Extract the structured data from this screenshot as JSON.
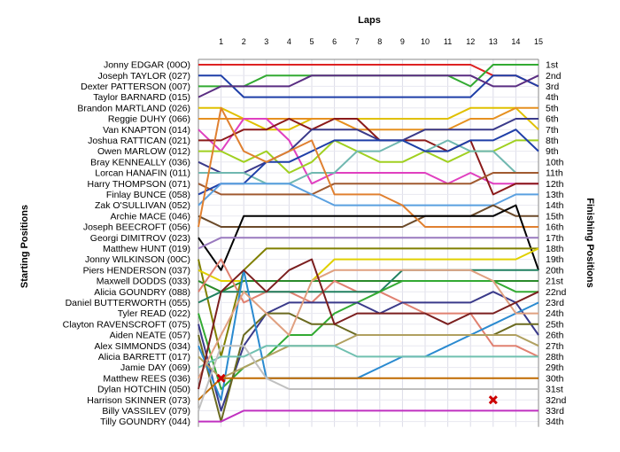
{
  "chart_data": {
    "type": "line",
    "title": "Laps",
    "xlabel": "Laps",
    "ylabel_left": "Starting Positions",
    "ylabel_right": "Finishing Positions",
    "x": [
      0,
      1,
      2,
      3,
      4,
      5,
      6,
      7,
      8,
      9,
      10,
      11,
      12,
      13,
      14,
      15
    ],
    "x_ticks": [
      "1",
      "2",
      "3",
      "4",
      "5",
      "6",
      "7",
      "8",
      "9",
      "10",
      "11",
      "12",
      "13",
      "14",
      "15"
    ],
    "ylim": [
      1,
      34
    ],
    "grid": true,
    "starting_labels": [
      "Jonny EDGAR (00O)",
      "Joseph TAYLOR (027)",
      "Dexter PATTERSON (007)",
      "Taylor BARNARD (015)",
      "Brandon MARTLAND (026)",
      "Reggie DUHY (066)",
      "Van KNAPTON (014)",
      "Joshua RATTICAN (021)",
      "Owen MARLOW (012)",
      "Bray KENNEALLY (036)",
      "Lorcan HANAFIN (011)",
      "Harry THOMPSON (071)",
      "Finlay BUNCE (058)",
      "Zak O'SULLIVAN (052)",
      "Archie MACE (046)",
      "Joseph BEECROFT (056)",
      "Georgi DIMITROV (023)",
      "Matthew HUNT (019)",
      "Jonny WILKINSON (00C)",
      "Piers HENDERSON (037)",
      "Maxwell DODDS (033)",
      "Alicia GOUNDRY (088)",
      "Daniel BUTTERWORTH (055)",
      "Tyler READ (022)",
      "Clayton RAVENSCROFT (075)",
      "Aiden NEATE (057)",
      "Alex SIMMONDS (034)",
      "Alicia BARRETT (017)",
      "Jamie DAY (069)",
      "Matthew REES (036)",
      "Dylan HOTCHIN (050)",
      "Harrison SKINNER (073)",
      "Billy VASSILEV (079)",
      "Tilly GOUNDRY (044)"
    ],
    "finishing_labels": [
      "1st",
      "2nd",
      "3rd",
      "4th",
      "5th",
      "6th",
      "7th",
      "8th",
      "9th",
      "10th",
      "11th",
      "12th",
      "13th",
      "14th",
      "15th",
      "16th",
      "17th",
      "18th",
      "19th",
      "20th",
      "21st",
      "22nd",
      "23rd",
      "24th",
      "25th",
      "26th",
      "27th",
      "28th",
      "29th",
      "30th",
      "31st",
      "32nd",
      "33rd",
      "34th"
    ],
    "series": [
      {
        "color": "#dd2222",
        "positions": [
          1,
          1,
          1,
          1,
          1,
          1,
          1,
          1,
          1,
          1,
          1,
          1,
          1,
          2,
          2,
          3
        ]
      },
      {
        "color": "#1f3fa8",
        "positions": [
          2,
          2,
          4,
          4,
          4,
          4,
          4,
          4,
          4,
          4,
          4,
          4,
          4,
          2,
          2,
          3
        ]
      },
      {
        "color": "#33aa33",
        "positions": [
          3,
          3,
          3,
          2,
          2,
          2,
          2,
          2,
          2,
          2,
          2,
          2,
          3,
          1,
          1,
          1
        ]
      },
      {
        "color": "#5a2d82",
        "positions": [
          4,
          3,
          3,
          3,
          3,
          2,
          2,
          2,
          2,
          2,
          2,
          2,
          2,
          3,
          3,
          2
        ]
      },
      {
        "color": "#e0c000",
        "positions": [
          5,
          5,
          6,
          7,
          7,
          6,
          6,
          6,
          6,
          6,
          6,
          6,
          5,
          5,
          5,
          7
        ]
      },
      {
        "color": "#e69020",
        "positions": [
          6,
          6,
          6,
          6,
          6,
          6,
          6,
          7,
          7,
          7,
          7,
          7,
          6,
          6,
          5,
          5
        ]
      },
      {
        "color": "#e040c0",
        "positions": [
          7,
          9,
          6,
          6,
          8,
          12,
          11,
          11,
          11,
          11,
          11,
          12,
          11,
          12,
          12,
          12
        ]
      },
      {
        "color": "#8b1a1a",
        "positions": [
          8,
          8,
          7,
          7,
          6,
          7,
          6,
          6,
          8,
          8,
          8,
          9,
          8,
          13,
          12,
          12
        ]
      },
      {
        "color": "#a0d020",
        "positions": [
          9,
          9,
          10,
          9,
          11,
          10,
          8,
          9,
          10,
          10,
          9,
          10,
          9,
          9,
          8,
          8
        ]
      },
      {
        "color": "#3a3a8a",
        "positions": [
          10,
          11,
          11,
          10,
          9,
          7,
          7,
          7,
          8,
          8,
          7,
          7,
          7,
          7,
          6,
          6
        ]
      },
      {
        "color": "#70b8b0",
        "positions": [
          11,
          11,
          11,
          12,
          12,
          11,
          11,
          9,
          9,
          8,
          9,
          8,
          9,
          9,
          11,
          11
        ]
      },
      {
        "color": "#a05a30",
        "positions": [
          12,
          13,
          13,
          13,
          13,
          13,
          12,
          12,
          12,
          12,
          12,
          12,
          12,
          11,
          11,
          11
        ]
      },
      {
        "color": "#1f3fa8",
        "positions": [
          13,
          12,
          12,
          10,
          10,
          9,
          8,
          8,
          8,
          8,
          9,
          9,
          8,
          8,
          7,
          9
        ]
      },
      {
        "color": "#5aa0e0",
        "positions": [
          14,
          12,
          12,
          12,
          12,
          13,
          14,
          14,
          14,
          14,
          14,
          14,
          14,
          14,
          13,
          13
        ]
      },
      {
        "color": "#6b4a2a",
        "positions": [
          15,
          16,
          16,
          16,
          16,
          16,
          16,
          16,
          16,
          16,
          15,
          15,
          15,
          14,
          15,
          15
        ]
      },
      {
        "color": "#e08030",
        "positions": [
          16,
          5,
          9,
          10,
          9,
          8,
          13,
          13,
          13,
          14,
          16,
          16,
          16,
          16,
          16,
          16
        ]
      },
      {
        "color": "#000000",
        "positions": [
          17,
          20,
          15,
          15,
          15,
          15,
          15,
          15,
          15,
          15,
          15,
          15,
          15,
          15,
          14,
          20
        ]
      },
      {
        "color": "#9a7abf",
        "positions": [
          18,
          17,
          17,
          17,
          17,
          17,
          17,
          17,
          17,
          17,
          17,
          17,
          17,
          17,
          17,
          17
        ]
      },
      {
        "color": "#808000",
        "positions": [
          19,
          28,
          20,
          18,
          18,
          18,
          18,
          18,
          18,
          18,
          18,
          18,
          18,
          18,
          18,
          18
        ]
      },
      {
        "color": "#e0d000",
        "positions": [
          20,
          21,
          21,
          21,
          21,
          21,
          19,
          19,
          19,
          19,
          19,
          19,
          19,
          19,
          19,
          18
        ]
      },
      {
        "color": "#2a8a2a",
        "positions": [
          21,
          22,
          21,
          21,
          21,
          21,
          21,
          21,
          21,
          21,
          21,
          21,
          21,
          21,
          21,
          21
        ]
      },
      {
        "color": "#e08070",
        "positions": [
          22,
          19,
          23,
          22,
          22,
          23,
          21,
          22,
          22,
          23,
          24,
          24,
          24,
          27,
          27,
          28
        ]
      },
      {
        "color": "#208060",
        "positions": [
          23,
          22,
          22,
          22,
          22,
          22,
          22,
          22,
          22,
          20,
          20,
          20,
          20,
          20,
          20,
          20
        ]
      },
      {
        "color": "#33aa33",
        "positions": [
          24,
          31,
          29,
          28,
          26,
          26,
          24,
          23,
          22,
          21,
          21,
          21,
          21,
          21,
          22,
          22
        ]
      },
      {
        "color": "#3a3a8a",
        "positions": [
          25,
          33,
          27,
          24,
          23,
          23,
          23,
          23,
          24,
          23,
          23,
          23,
          23,
          22,
          23,
          26
        ]
      },
      {
        "color": "#6b6a20",
        "positions": [
          26,
          34,
          26,
          24,
          24,
          25,
          25,
          26,
          26,
          26,
          26,
          26,
          26,
          26,
          25,
          25
        ]
      },
      {
        "color": "#2a8ad0",
        "positions": [
          27,
          32,
          20,
          30,
          30,
          30,
          30,
          30,
          29,
          28,
          28,
          27,
          26,
          25,
          24,
          23
        ]
      },
      {
        "color": "#b0a060",
        "positions": [
          28,
          30,
          29,
          28,
          27,
          27,
          27,
          26,
          26,
          26,
          26,
          26,
          26,
          26,
          26,
          27
        ]
      },
      {
        "color": "#70c0b0",
        "positions": [
          29,
          28,
          28,
          27,
          27,
          27,
          27,
          28,
          28,
          28,
          28,
          28,
          28,
          28,
          28,
          28
        ]
      },
      {
        "color": "#e0a080",
        "positions": [
          30,
          26,
          22,
          24,
          26,
          21,
          20,
          20,
          20,
          20,
          20,
          20,
          20,
          21,
          24,
          24
        ]
      },
      {
        "color": "#7b1f1f",
        "positions": [
          31,
          22,
          20,
          22,
          20,
          19,
          25,
          24,
          24,
          24,
          24,
          25,
          24,
          24,
          23,
          22
        ]
      },
      {
        "color": "#c06a00",
        "positions": [
          32,
          30,
          30,
          30,
          30,
          30,
          30,
          30,
          30,
          30,
          30,
          30,
          30,
          30,
          30,
          30
        ]
      },
      {
        "color": "#c0c0c0",
        "positions": [
          33,
          27,
          27,
          30,
          31,
          31,
          31,
          31,
          31,
          31,
          31,
          31,
          31,
          31,
          31,
          31
        ]
      },
      {
        "color": "#c030c0",
        "positions": [
          34,
          34,
          33,
          33,
          33,
          33,
          33,
          33,
          33,
          33,
          33,
          33,
          33,
          33,
          33,
          33
        ]
      }
    ],
    "retirements": [
      {
        "lap": 1,
        "position": 30
      },
      {
        "lap": 13,
        "position": 32
      }
    ]
  }
}
